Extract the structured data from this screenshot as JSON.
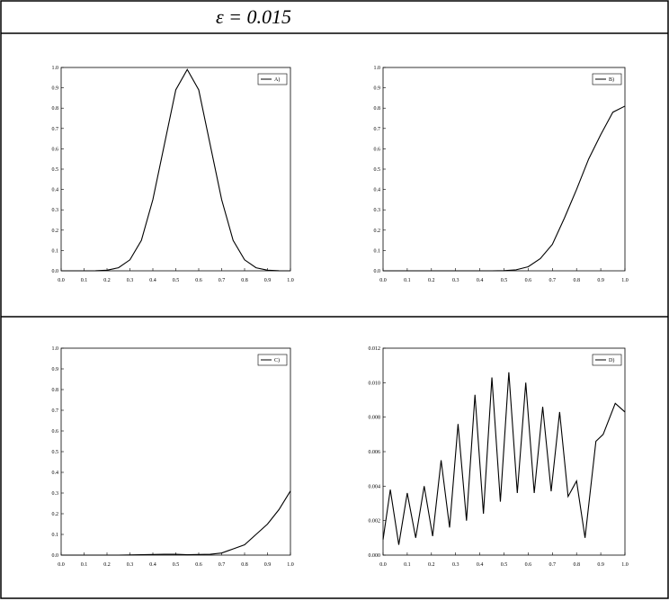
{
  "header": "ε = 0.015",
  "chart_data": [
    {
      "type": "line",
      "x": [
        0,
        0.05,
        0.1,
        0.15,
        0.2,
        0.25,
        0.3,
        0.35,
        0.4,
        0.45,
        0.5,
        0.55,
        0.6,
        0.65,
        0.7,
        0.75,
        0.8,
        0.85,
        0.9,
        0.95,
        1
      ],
      "series": [
        {
          "name": "A)",
          "color": "#000000",
          "values": [
            0,
            0,
            0,
            0.0005,
            0.003,
            0.015,
            0.054,
            0.15,
            0.35,
            0.62,
            0.89,
            0.99,
            0.89,
            0.62,
            0.35,
            0.15,
            0.054,
            0.015,
            0.003,
            0.0005,
            0
          ]
        }
      ],
      "xlim": [
        0,
        1
      ],
      "ylim": [
        0,
        1
      ],
      "xticks": [
        {
          "value": 0,
          "label": "0.0"
        },
        {
          "value": 0.1,
          "label": "0.1"
        },
        {
          "value": 0.2,
          "label": "0.2"
        },
        {
          "value": 0.3,
          "label": "0.3"
        },
        {
          "value": 0.4,
          "label": "0.4"
        },
        {
          "value": 0.5,
          "label": "0.5"
        },
        {
          "value": 0.6,
          "label": "0.6"
        },
        {
          "value": 0.7,
          "label": "0.7"
        },
        {
          "value": 0.8,
          "label": "0.8"
        },
        {
          "value": 0.9,
          "label": "0.9"
        },
        {
          "value": 1,
          "label": "1.0"
        }
      ],
      "yticks": [
        {
          "value": 0,
          "label": "0.0"
        },
        {
          "value": 0.1,
          "label": "0.1"
        },
        {
          "value": 0.2,
          "label": "0.2"
        },
        {
          "value": 0.3,
          "label": "0.3"
        },
        {
          "value": 0.4,
          "label": "0.4"
        },
        {
          "value": 0.5,
          "label": "0.5"
        },
        {
          "value": 0.6,
          "label": "0.6"
        },
        {
          "value": 0.7,
          "label": "0.7"
        },
        {
          "value": 0.8,
          "label": "0.8"
        },
        {
          "value": 0.9,
          "label": "0.9"
        },
        {
          "value": 1,
          "label": "1.0"
        }
      ],
      "legend": "upper right"
    },
    {
      "type": "line",
      "x": [
        0,
        0.05,
        0.1,
        0.15,
        0.2,
        0.25,
        0.3,
        0.35,
        0.4,
        0.45,
        0.5,
        0.55,
        0.6,
        0.65,
        0.7,
        0.75,
        0.8,
        0.85,
        0.9,
        0.95,
        1
      ],
      "series": [
        {
          "name": "B)",
          "color": "#000000",
          "values": [
            0,
            0,
            0,
            0,
            0,
            0,
            0,
            0,
            0,
            0,
            0.001,
            0.005,
            0.02,
            0.06,
            0.13,
            0.26,
            0.4,
            0.55,
            0.67,
            0.78,
            0.81
          ]
        }
      ],
      "xlim": [
        0,
        1
      ],
      "ylim": [
        0,
        1
      ],
      "xticks": [
        {
          "value": 0,
          "label": "0.0"
        },
        {
          "value": 0.1,
          "label": "0.1"
        },
        {
          "value": 0.2,
          "label": "0.2"
        },
        {
          "value": 0.3,
          "label": "0.3"
        },
        {
          "value": 0.4,
          "label": "0.4"
        },
        {
          "value": 0.5,
          "label": "0.5"
        },
        {
          "value": 0.6,
          "label": "0.6"
        },
        {
          "value": 0.7,
          "label": "0.7"
        },
        {
          "value": 0.8,
          "label": "0.8"
        },
        {
          "value": 0.9,
          "label": "0.9"
        },
        {
          "value": 1,
          "label": "1.0"
        }
      ],
      "yticks": [
        {
          "value": 0,
          "label": "0.0"
        },
        {
          "value": 0.1,
          "label": "0.1"
        },
        {
          "value": 0.2,
          "label": "0.2"
        },
        {
          "value": 0.3,
          "label": "0.3"
        },
        {
          "value": 0.4,
          "label": "0.4"
        },
        {
          "value": 0.5,
          "label": "0.5"
        },
        {
          "value": 0.6,
          "label": "0.6"
        },
        {
          "value": 0.7,
          "label": "0.7"
        },
        {
          "value": 0.8,
          "label": "0.8"
        },
        {
          "value": 0.9,
          "label": "0.9"
        },
        {
          "value": 1,
          "label": "1.0"
        }
      ],
      "legend": "upper right"
    },
    {
      "type": "line",
      "x": [
        0,
        0.05,
        0.1,
        0.15,
        0.2,
        0.25,
        0.3,
        0.35,
        0.4,
        0.45,
        0.5,
        0.55,
        0.6,
        0.65,
        0.7,
        0.75,
        0.8,
        0.85,
        0.9,
        0.95,
        1
      ],
      "series": [
        {
          "name": "C)",
          "color": "#000000",
          "values": [
            0,
            0,
            0,
            0,
            0,
            0,
            0.001,
            0.002,
            0.003,
            0.004,
            0.004,
            0.002,
            0.003,
            0.004,
            0.01,
            0.03,
            0.05,
            0.1,
            0.15,
            0.22,
            0.31
          ]
        }
      ],
      "xlim": [
        0,
        1
      ],
      "ylim": [
        0,
        1
      ],
      "xticks": [
        {
          "value": 0,
          "label": "0.0"
        },
        {
          "value": 0.1,
          "label": "0.1"
        },
        {
          "value": 0.2,
          "label": "0.2"
        },
        {
          "value": 0.3,
          "label": "0.3"
        },
        {
          "value": 0.4,
          "label": "0.4"
        },
        {
          "value": 0.5,
          "label": "0.5"
        },
        {
          "value": 0.6,
          "label": "0.6"
        },
        {
          "value": 0.7,
          "label": "0.7"
        },
        {
          "value": 0.8,
          "label": "0.8"
        },
        {
          "value": 0.9,
          "label": "0.9"
        },
        {
          "value": 1,
          "label": "1.0"
        }
      ],
      "yticks": [
        {
          "value": 0,
          "label": "0.0"
        },
        {
          "value": 0.1,
          "label": "0.1"
        },
        {
          "value": 0.2,
          "label": "0.2"
        },
        {
          "value": 0.3,
          "label": "0.3"
        },
        {
          "value": 0.4,
          "label": "0.4"
        },
        {
          "value": 0.5,
          "label": "0.5"
        },
        {
          "value": 0.6,
          "label": "0.6"
        },
        {
          "value": 0.7,
          "label": "0.7"
        },
        {
          "value": 0.8,
          "label": "0.8"
        },
        {
          "value": 0.9,
          "label": "0.9"
        },
        {
          "value": 1,
          "label": "1.0"
        }
      ],
      "legend": "upper right"
    },
    {
      "type": "line",
      "x": [
        0,
        0.03,
        0.065,
        0.1,
        0.135,
        0.17,
        0.205,
        0.24,
        0.275,
        0.31,
        0.345,
        0.38,
        0.415,
        0.45,
        0.485,
        0.52,
        0.555,
        0.59,
        0.625,
        0.66,
        0.695,
        0.73,
        0.765,
        0.8,
        0.835,
        0.88,
        0.91,
        0.96,
        1
      ],
      "series": [
        {
          "name": "D)",
          "color": "#000000",
          "values": [
            0.0009,
            0.0038,
            0.0006,
            0.0036,
            0.001,
            0.004,
            0.0011,
            0.0055,
            0.0016,
            0.0076,
            0.002,
            0.0093,
            0.0024,
            0.0103,
            0.0031,
            0.0106,
            0.0036,
            0.01,
            0.0036,
            0.0086,
            0.0037,
            0.0083,
            0.0034,
            0.0043,
            0.001,
            0.0066,
            0.007,
            0.0088,
            0.0083
          ]
        }
      ],
      "xlim": [
        0,
        1
      ],
      "ylim": [
        0,
        0.012
      ],
      "xticks": [
        {
          "value": 0,
          "label": "0.0"
        },
        {
          "value": 0.1,
          "label": "0.1"
        },
        {
          "value": 0.2,
          "label": "0.2"
        },
        {
          "value": 0.3,
          "label": "0.3"
        },
        {
          "value": 0.4,
          "label": "0.4"
        },
        {
          "value": 0.5,
          "label": "0.5"
        },
        {
          "value": 0.6,
          "label": "0.6"
        },
        {
          "value": 0.7,
          "label": "0.7"
        },
        {
          "value": 0.8,
          "label": "0.8"
        },
        {
          "value": 0.9,
          "label": "0.9"
        },
        {
          "value": 1,
          "label": "1.0"
        }
      ],
      "yticks": [
        {
          "value": 0,
          "label": "0.000"
        },
        {
          "value": 0.002,
          "label": "0.002"
        },
        {
          "value": 0.004,
          "label": "0.004"
        },
        {
          "value": 0.006,
          "label": "0.006"
        },
        {
          "value": 0.008,
          "label": "0.008"
        },
        {
          "value": 0.01,
          "label": "0.010"
        },
        {
          "value": 0.012,
          "label": "0.012"
        }
      ],
      "legend": "upper right"
    }
  ]
}
